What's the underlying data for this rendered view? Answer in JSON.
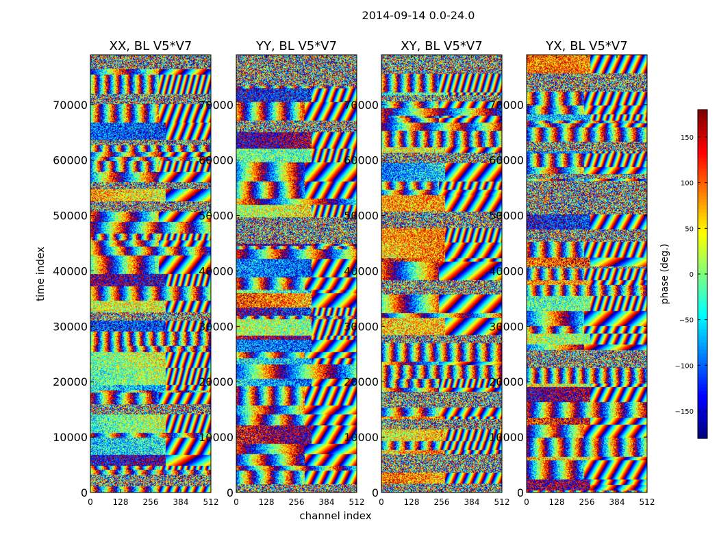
{
  "chart_data": {
    "type": "heatmap",
    "suptitle": "2014-09-14 0.0-24.0",
    "xlabel": "channel index",
    "ylabel": "time index",
    "xlim": [
      0,
      512
    ],
    "ylim": [
      0,
      79000
    ],
    "xticks": [
      0,
      128,
      256,
      384,
      512
    ],
    "yticks": [
      0,
      10000,
      20000,
      30000,
      40000,
      50000,
      60000,
      70000
    ],
    "panels": [
      {
        "title": "XX, BL V5*V7",
        "coherent_channel_limit": 320
      },
      {
        "title": "YY, BL V5*V7",
        "coherent_channel_limit": 320
      },
      {
        "title": "XY, BL V5*V7",
        "coherent_channel_limit": 270
      },
      {
        "title": "YX, BL V5*V7",
        "coherent_channel_limit": 270
      }
    ],
    "colorbar": {
      "label": "phase (deg.)",
      "range": [
        -180,
        180
      ],
      "ticks": [
        -150,
        -100,
        -50,
        0,
        50,
        100,
        150
      ],
      "colormap": "jet"
    }
  }
}
